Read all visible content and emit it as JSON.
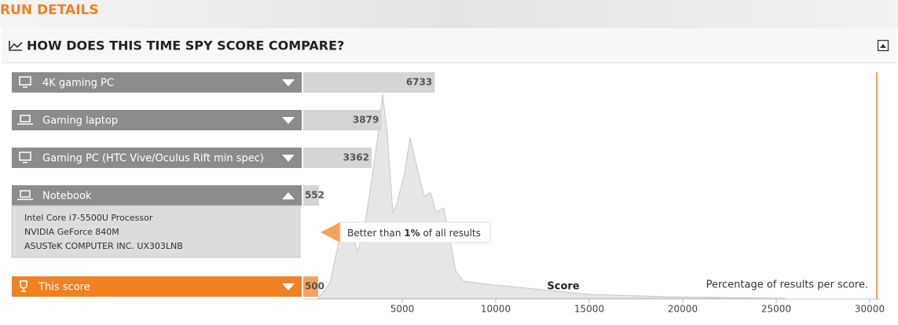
{
  "header": {
    "title": "RUN DETAILS"
  },
  "panel": {
    "title": "HOW DOES THIS TIME SPY SCORE COMPARE?"
  },
  "rows": [
    {
      "label": "4K gaming PC",
      "score": 6733,
      "icon": "desktop",
      "expanded": false
    },
    {
      "label": "Gaming laptop",
      "score": 3879,
      "icon": "laptop",
      "expanded": false
    },
    {
      "label": "Gaming PC (HTC Vive/Oculus Rift min spec)",
      "score": 3362,
      "icon": "desktop",
      "expanded": false
    },
    {
      "label": "Notebook",
      "score": 552,
      "icon": "laptop",
      "expanded": true,
      "details": [
        "Intel Core i7-5500U Processor",
        "NVIDIA GeForce 840M",
        "ASUSTeK COMPUTER INC. UX303LNB"
      ]
    }
  ],
  "this_score": {
    "label": "This score",
    "score": 500
  },
  "tooltip": {
    "before": "Better than ",
    "value": "1%",
    "after": " of all results"
  },
  "axis": {
    "label": "Score",
    "note": "Percentage of results per score.",
    "xlim": [
      0,
      30000
    ],
    "ticks": [
      5000,
      10000,
      15000,
      20000,
      25000,
      30000
    ]
  }
}
